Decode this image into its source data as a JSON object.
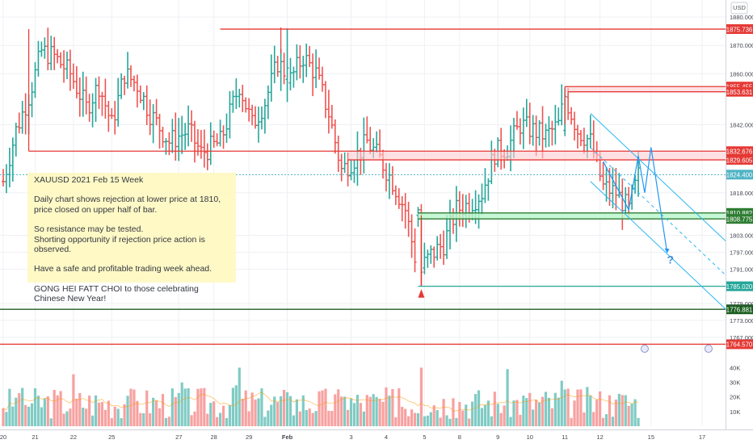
{
  "currency": "USD",
  "colors": {
    "up": "#26a69a",
    "down": "#ef5350",
    "vol_up": "#80cbc4",
    "vol_down": "#f7a1a0",
    "resistance": "#e53935",
    "support": "#2e7d32",
    "support_zone": "#b9f6ca",
    "channel": "#29b6f6",
    "annotation": "#2196f3",
    "grid": "#eef0f4",
    "note_bg": "#fff9c4"
  },
  "note": {
    "lines": [
      "XAUUSD 2021 Feb 15 Week",
      "",
      "Daily chart shows rejection at lower price at 1810,",
      "price closed on upper half of bar.",
      "",
      "So resistance may be tested.",
      "Shorting opportunity if rejection price action is observed.",
      "",
      "Have a safe and profitable trading week ahead.",
      "",
      "GONG HEI FATT CHOI to those celebrating Chinese New Year!"
    ]
  },
  "question_mark": "?",
  "chart_data": {
    "type": "bar",
    "subtype": "ohlc",
    "symbol": "XAUUSD",
    "y_axis": {
      "range": [
        1759,
        1886
      ],
      "ticks": [
        1880.0,
        1870.0,
        1860.0,
        1842.0,
        1818.0,
        1803.0,
        1797.0,
        1791.0,
        1779.0,
        1773.0,
        1767.0
      ],
      "tick_labels": [
        "1880.000",
        "1870.000",
        "1860.000",
        "1842.000",
        "1818.000",
        "1803.000",
        "1797.000",
        "1791.000",
        "1779.000",
        "1773.000",
        "1767.000"
      ]
    },
    "x_axis": {
      "labels": [
        {
          "text": "20",
          "bar": 0
        },
        {
          "text": "21",
          "bar": 10
        },
        {
          "text": "22",
          "bar": 22
        },
        {
          "text": "25",
          "bar": 34
        },
        {
          "text": "27",
          "bar": 55
        },
        {
          "text": "28",
          "bar": 66
        },
        {
          "text": "29",
          "bar": 77
        },
        {
          "text": "Feb",
          "bar": 89
        },
        {
          "text": "3",
          "bar": 109
        },
        {
          "text": "4",
          "bar": 120
        },
        {
          "text": "5",
          "bar": 132
        },
        {
          "text": "8",
          "bar": 143
        },
        {
          "text": "9",
          "bar": 155
        },
        {
          "text": "10",
          "bar": 165
        },
        {
          "text": "11",
          "bar": 176
        },
        {
          "text": "12",
          "bar": 187
        },
        {
          "text": "15",
          "bar": 203
        },
        {
          "text": "17",
          "bar": 219
        }
      ]
    },
    "volume_axis": {
      "range": [
        0,
        43000
      ],
      "ticks": [
        10000,
        20000,
        30000,
        40000
      ],
      "tick_labels": [
        "10K",
        "20K",
        "30K",
        "40K"
      ]
    },
    "levels": [
      {
        "label": "1875.736",
        "price": 1875.736,
        "kind": "resistance"
      },
      {
        "label": "1855.455",
        "price": 1855.455,
        "kind": "resistance"
      },
      {
        "label": "1853.631",
        "price": 1853.631,
        "kind": "resistance"
      },
      {
        "label": "1832.676",
        "price": 1832.676,
        "kind": "resistance"
      },
      {
        "label": "1829.605",
        "price": 1829.605,
        "kind": "resistance"
      },
      {
        "label": "1824.400",
        "price": 1824.4,
        "kind": "last"
      },
      {
        "label": "1810.882",
        "price": 1810.882,
        "kind": "support"
      },
      {
        "label": "1808.775",
        "price": 1808.775,
        "kind": "support"
      },
      {
        "label": "1785.020",
        "price": 1785.02,
        "kind": "support_teal"
      },
      {
        "label": "1776.881",
        "price": 1776.881,
        "kind": "support_dark"
      },
      {
        "label": "1764.570",
        "price": 1764.57,
        "kind": "resistance"
      }
    ],
    "bar_count": 200
  }
}
